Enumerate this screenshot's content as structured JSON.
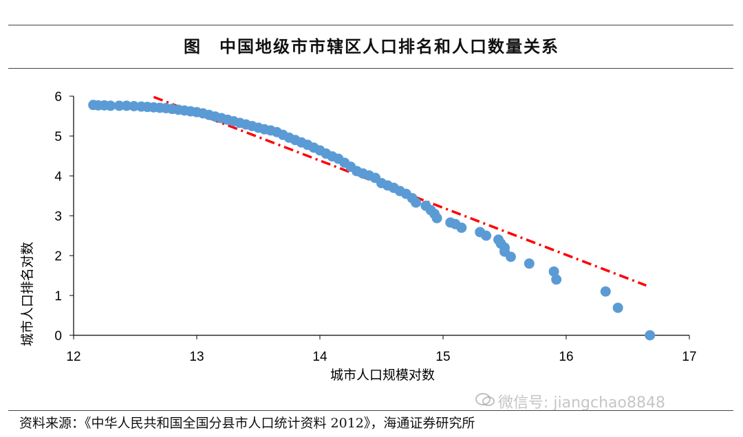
{
  "title": "图　中国地级市市辖区人口排名和人口数量关系",
  "source": "资料来源：《中华人民共和国全国分县市人口统计资料 2012》，海通证券研究所",
  "watermark": "微信号: jiangchao8848",
  "watermark_icon": "wechat-icon",
  "chart_data": {
    "type": "scatter",
    "title": "",
    "xlabel": "城市人口规模对数",
    "ylabel": "城市人口排名对数",
    "xlim": [
      12,
      17
    ],
    "ylim": [
      0,
      6
    ],
    "xticks": [
      "12",
      "13",
      "14",
      "15",
      "16",
      "17"
    ],
    "yticks": [
      "0",
      "1",
      "2",
      "3",
      "4",
      "5",
      "6"
    ],
    "grid": false,
    "point_color": "#5b9bd5",
    "fit_color": "#ff0000",
    "series": [
      {
        "points": [
          [
            12.16,
            5.78
          ],
          [
            12.2,
            5.77
          ],
          [
            12.25,
            5.77
          ],
          [
            12.3,
            5.76
          ],
          [
            12.37,
            5.76
          ],
          [
            12.43,
            5.76
          ],
          [
            12.49,
            5.75
          ],
          [
            12.55,
            5.74
          ],
          [
            12.6,
            5.73
          ],
          [
            12.65,
            5.72
          ],
          [
            12.7,
            5.71
          ],
          [
            12.75,
            5.7
          ],
          [
            12.8,
            5.68
          ],
          [
            12.85,
            5.66
          ],
          [
            12.9,
            5.64
          ],
          [
            12.95,
            5.62
          ],
          [
            13.0,
            5.6
          ],
          [
            13.05,
            5.57
          ],
          [
            13.1,
            5.53
          ],
          [
            13.15,
            5.49
          ],
          [
            13.2,
            5.45
          ],
          [
            13.25,
            5.41
          ],
          [
            13.3,
            5.37
          ],
          [
            13.35,
            5.33
          ],
          [
            13.4,
            5.29
          ],
          [
            13.45,
            5.25
          ],
          [
            13.5,
            5.21
          ],
          [
            13.55,
            5.17
          ],
          [
            13.6,
            5.14
          ],
          [
            13.65,
            5.1
          ],
          [
            13.7,
            5.03
          ],
          [
            13.75,
            4.96
          ],
          [
            13.8,
            4.9
          ],
          [
            13.85,
            4.84
          ],
          [
            13.9,
            4.78
          ],
          [
            13.95,
            4.71
          ],
          [
            14.0,
            4.64
          ],
          [
            14.05,
            4.56
          ],
          [
            14.1,
            4.49
          ],
          [
            14.15,
            4.43
          ],
          [
            14.2,
            4.33
          ],
          [
            14.25,
            4.23
          ],
          [
            14.3,
            4.12
          ],
          [
            14.35,
            4.06
          ],
          [
            14.4,
            4.01
          ],
          [
            14.45,
            3.95
          ],
          [
            14.5,
            3.82
          ],
          [
            14.55,
            3.76
          ],
          [
            14.6,
            3.7
          ],
          [
            14.65,
            3.62
          ],
          [
            14.7,
            3.55
          ],
          [
            14.75,
            3.44
          ],
          [
            14.78,
            3.33
          ],
          [
            14.86,
            3.25
          ],
          [
            14.9,
            3.14
          ],
          [
            14.93,
            3.05
          ],
          [
            14.95,
            2.94
          ],
          [
            15.06,
            2.83
          ],
          [
            15.1,
            2.79
          ],
          [
            15.15,
            2.7
          ],
          [
            15.3,
            2.59
          ],
          [
            15.35,
            2.5
          ],
          [
            15.45,
            2.4
          ],
          [
            15.47,
            2.3
          ],
          [
            15.5,
            2.2
          ],
          [
            15.5,
            2.1
          ],
          [
            15.55,
            1.97
          ],
          [
            15.7,
            1.8
          ],
          [
            15.9,
            1.6
          ],
          [
            15.92,
            1.4
          ],
          [
            16.32,
            1.1
          ],
          [
            16.42,
            0.69
          ],
          [
            16.68,
            0.0
          ]
        ]
      }
    ],
    "fit_line": {
      "x": [
        12.65,
        16.65
      ],
      "y": [
        5.98,
        1.25
      ]
    }
  }
}
